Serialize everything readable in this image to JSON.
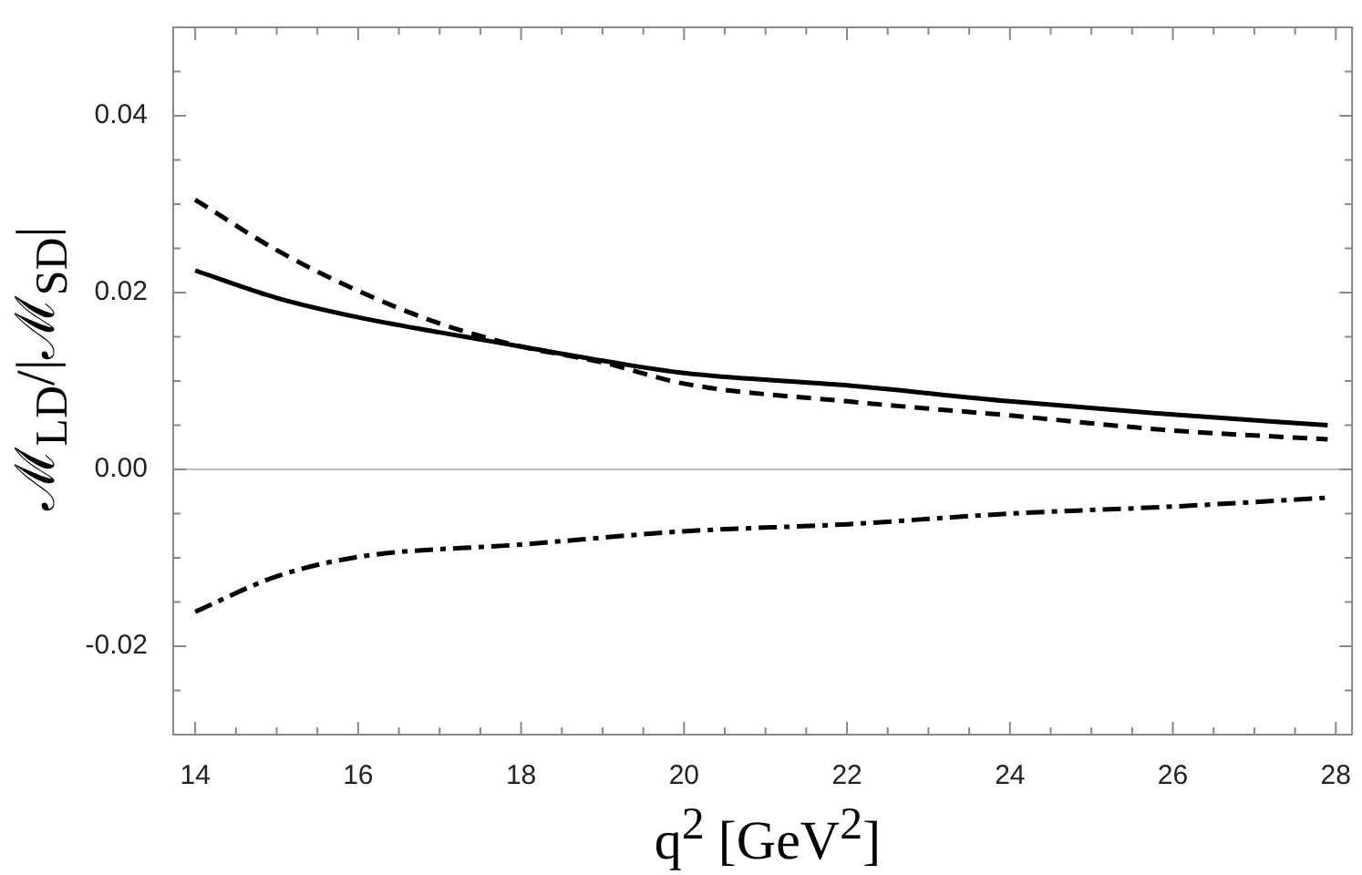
{
  "chart_data": {
    "type": "line",
    "xlabel": "q$^{2}$ [GeV$^{2}$]",
    "ylabel": "ℳ$_{LD}$/|ℳ$_{SD}$|",
    "xlim": [
      13.73,
      28.2
    ],
    "ylim": [
      -0.03,
      0.05
    ],
    "xticks": [
      14,
      {
        "value": 14.5,
        "label": null
      },
      {
        "value": 15,
        "label": null
      },
      {
        "value": 15.5,
        "label": null
      },
      16,
      {
        "value": 16.5,
        "label": null
      },
      {
        "value": 17,
        "label": null
      },
      {
        "value": 17.5,
        "label": null
      },
      18,
      {
        "value": 18.5,
        "label": null
      },
      {
        "value": 19,
        "label": null
      },
      {
        "value": 19.5,
        "label": null
      },
      20,
      {
        "value": 20.5,
        "label": null
      },
      {
        "value": 21,
        "label": null
      },
      {
        "value": 21.5,
        "label": null
      },
      22,
      {
        "value": 22.5,
        "label": null
      },
      {
        "value": 23,
        "label": null
      },
      {
        "value": 23.5,
        "label": null
      },
      24,
      {
        "value": 24.5,
        "label": null
      },
      {
        "value": 25,
        "label": null
      },
      {
        "value": 25.5,
        "label": null
      },
      26,
      {
        "value": 26.5,
        "label": null
      },
      {
        "value": 27,
        "label": null
      },
      {
        "value": 27.5,
        "label": null
      },
      28
    ],
    "yticks": [
      {
        "value": -0.025,
        "label": null
      },
      {
        "value": -0.02,
        "label": "-0.02"
      },
      {
        "value": -0.015,
        "label": null
      },
      {
        "value": -0.01,
        "label": null
      },
      {
        "value": -0.005,
        "label": null
      },
      {
        "value": 0,
        "label": "0.00"
      },
      {
        "value": 0.005,
        "label": null
      },
      {
        "value": 0.01,
        "label": null
      },
      {
        "value": 0.015,
        "label": null
      },
      {
        "value": 0.02,
        "label": "0.02"
      },
      {
        "value": 0.025,
        "label": null
      },
      {
        "value": 0.03,
        "label": null
      },
      {
        "value": 0.035,
        "label": null
      },
      {
        "value": 0.04,
        "label": "0.04"
      },
      {
        "value": 0.045,
        "label": null
      }
    ],
    "grid": false,
    "legend": false,
    "marker": "none",
    "ref_lines": [
      {
        "axis": "y",
        "value": 0,
        "color": "#bbbbbb",
        "line_style": "solid"
      }
    ],
    "series": [
      {
        "color": "#000000",
        "line_style": "solid",
        "x": [
          14,
          15,
          16,
          17,
          18,
          19,
          20,
          22,
          24,
          26,
          27.9
        ],
        "values": [
          0.0225,
          0.0194,
          0.0172,
          0.0155,
          0.0139,
          0.0123,
          0.0109,
          0.0095,
          0.0077,
          0.0062,
          0.005
        ]
      },
      {
        "color": "#000000",
        "line_style": "dashed",
        "x": [
          14,
          15,
          16,
          17,
          18,
          19,
          20,
          22,
          24,
          26,
          27.9
        ],
        "values": [
          0.0305,
          0.0248,
          0.0202,
          0.0165,
          0.0139,
          0.0121,
          0.0097,
          0.0077,
          0.0061,
          0.0044,
          0.0034
        ]
      },
      {
        "color": "#000000",
        "line_style": "dashdot",
        "x": [
          14,
          15,
          16,
          18,
          20,
          22,
          24,
          26,
          27.9
        ],
        "values": [
          -0.0161,
          -0.0121,
          -0.0099,
          -0.0085,
          -0.007,
          -0.0062,
          -0.005,
          -0.0042,
          -0.0032
        ]
      }
    ]
  }
}
